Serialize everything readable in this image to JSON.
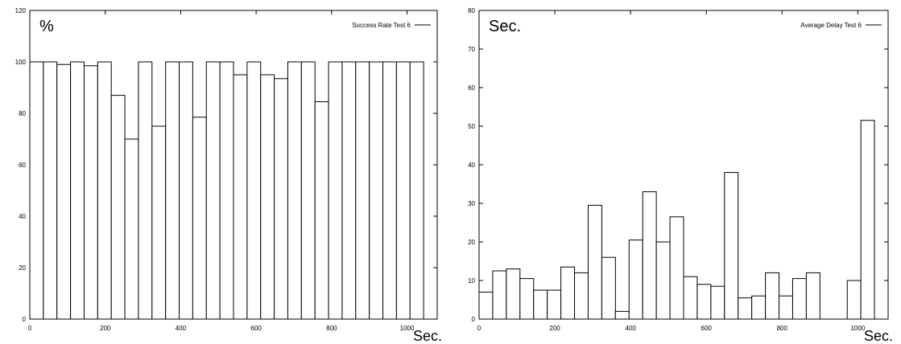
{
  "chart_data": [
    {
      "type": "bar",
      "unit_label": "%",
      "xlabel": "Sec.",
      "legend": "Success Rate Test 6",
      "legend_position": "top-right",
      "grid": false,
      "xlim": [
        0,
        1080
      ],
      "ylim": [
        0,
        120
      ],
      "xticks": [
        0,
        200,
        400,
        600,
        800,
        1000
      ],
      "yticks": [
        0,
        20,
        40,
        60,
        80,
        100,
        120
      ],
      "bin_width": 36,
      "series": [
        {
          "x": [
            18,
            54,
            90,
            126,
            162,
            198,
            234,
            270,
            306,
            342,
            378,
            414,
            450,
            486,
            522,
            558,
            594,
            630,
            666,
            702,
            738,
            774,
            810,
            846,
            882,
            918,
            954,
            990,
            1026
          ],
          "values": [
            100,
            100,
            99,
            100,
            98.5,
            100,
            87,
            70,
            100,
            75,
            100,
            100,
            78.5,
            100,
            100,
            95,
            100,
            95,
            93.5,
            100,
            100,
            84.5,
            100,
            100,
            100,
            100,
            100,
            100,
            100
          ]
        }
      ]
    },
    {
      "type": "bar",
      "unit_label": "Sec.",
      "xlabel": "Sec.",
      "legend": "Average Delay Test 6",
      "legend_position": "top-right",
      "grid": false,
      "xlim": [
        0,
        1080
      ],
      "ylim": [
        0,
        80
      ],
      "xticks": [
        0,
        200,
        400,
        600,
        800,
        1000
      ],
      "yticks": [
        0,
        10,
        20,
        30,
        40,
        50,
        60,
        70,
        80
      ],
      "bin_width": 36,
      "series": [
        {
          "x": [
            18,
            54,
            90,
            126,
            162,
            198,
            234,
            270,
            306,
            342,
            378,
            414,
            450,
            486,
            522,
            558,
            594,
            630,
            666,
            702,
            738,
            774,
            810,
            846,
            882,
            918,
            954,
            990,
            1026
          ],
          "values": [
            7,
            12.5,
            13,
            10.5,
            7.5,
            7.5,
            13.5,
            12,
            29.5,
            16,
            2,
            20.5,
            33,
            20,
            26.5,
            11,
            9,
            8.5,
            38,
            5.5,
            6,
            12,
            6,
            10.5,
            12,
            0,
            0,
            10,
            51.5
          ]
        }
      ]
    }
  ]
}
